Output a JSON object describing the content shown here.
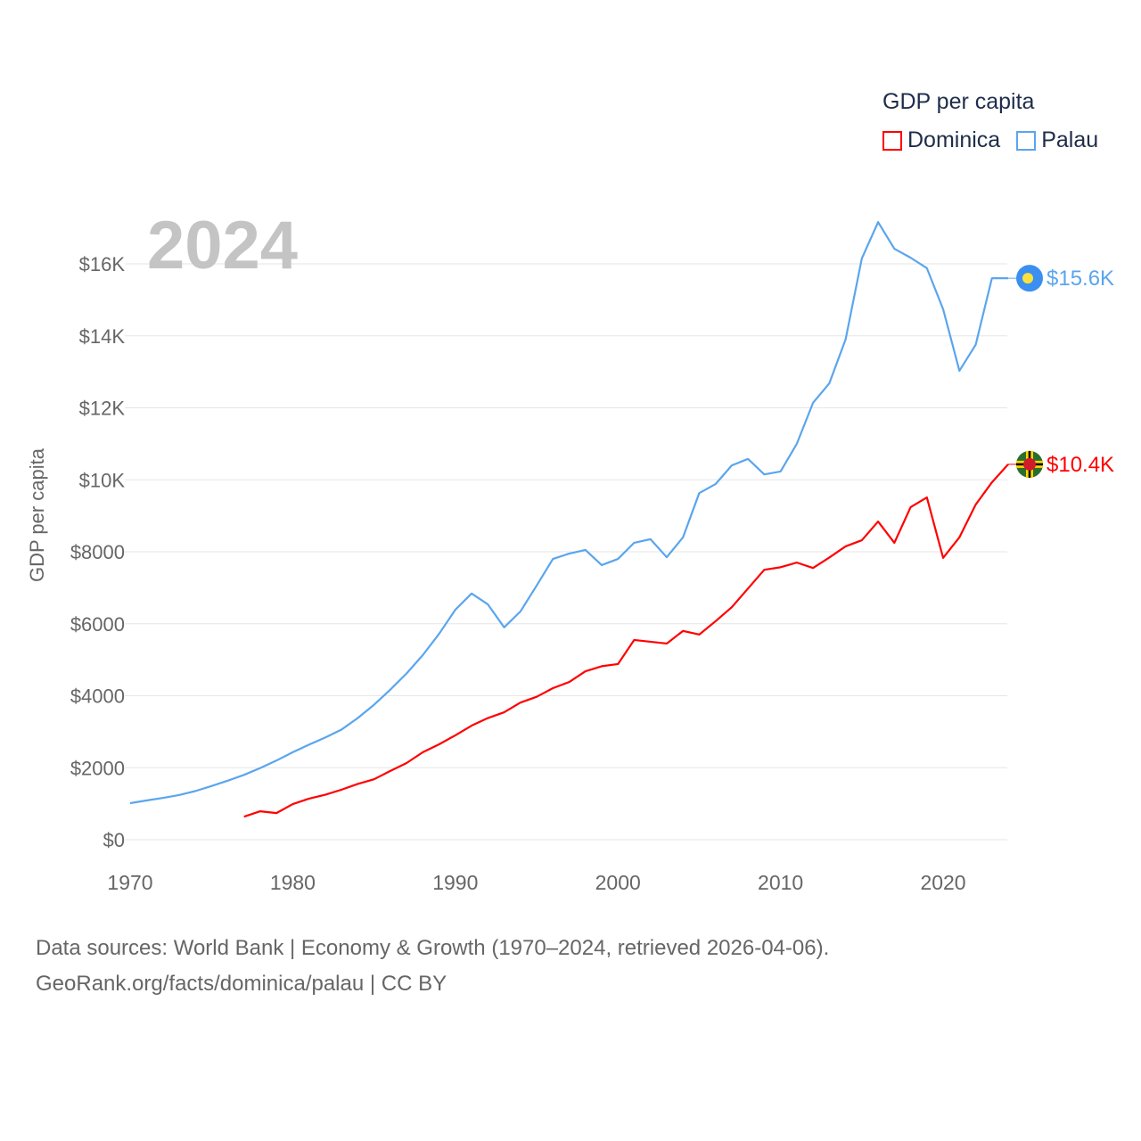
{
  "chart_data": {
    "type": "line",
    "title": "GDP per capita",
    "current_year_label": "2024",
    "xlabel": "",
    "ylabel": "GDP per capita",
    "xlim": [
      1970,
      2024
    ],
    "ylim": [
      0,
      17500
    ],
    "x_ticks": [
      1970,
      1980,
      1990,
      2000,
      2010,
      2020
    ],
    "x_tick_labels": [
      "1970",
      "1980",
      "1990",
      "2000",
      "2010",
      "2020"
    ],
    "y_ticks": [
      0,
      2000,
      4000,
      6000,
      8000,
      10000,
      12000,
      14000,
      16000
    ],
    "y_tick_labels": [
      "$0",
      "$2000",
      "$4000",
      "$6000",
      "$8000",
      "$10K",
      "$12K",
      "$14K",
      "$16K"
    ],
    "grid": true,
    "legend_position": "top-right",
    "series": [
      {
        "name": "Dominica",
        "color": "#ff0000",
        "end_label": "$10.4K",
        "start_year": 1977,
        "values": [
          640,
          790,
          740,
          990,
          1140,
          1250,
          1390,
          1550,
          1680,
          1910,
          2130,
          2430,
          2650,
          2900,
          3170,
          3380,
          3540,
          3810,
          3970,
          4210,
          4380,
          4680,
          4820,
          4880,
          5550,
          5500,
          5450,
          5800,
          5700,
          6070,
          6460,
          6980,
          7500,
          7570,
          7700,
          7550,
          7840,
          8150,
          8320,
          8840,
          8250,
          9240,
          9510,
          7830,
          8400,
          9310,
          9930,
          10430
        ]
      },
      {
        "name": "Palau",
        "color": "#5aa5ee",
        "end_label": "$15.6K",
        "start_year": 1970,
        "values": [
          1015,
          1090,
          1160,
          1240,
          1350,
          1490,
          1640,
          1800,
          1990,
          2200,
          2430,
          2640,
          2840,
          3060,
          3380,
          3750,
          4170,
          4620,
          5130,
          5720,
          6390,
          6840,
          6540,
          5900,
          6340,
          7060,
          7800,
          7950,
          8050,
          7630,
          7800,
          8250,
          8350,
          7850,
          8400,
          9630,
          9880,
          10400,
          10580,
          10150,
          10230,
          11000,
          12140,
          12680,
          13900,
          16150,
          17160,
          16420,
          16170,
          15880,
          14740,
          13030,
          13750,
          15600,
          15600
        ]
      }
    ]
  },
  "footer": {
    "line1": "Data sources: World Bank | Economy & Growth (1970–2024, retrieved 2026-04-06).",
    "line2": "GeoRank.org/facts/dominica/palau | CC BY"
  }
}
